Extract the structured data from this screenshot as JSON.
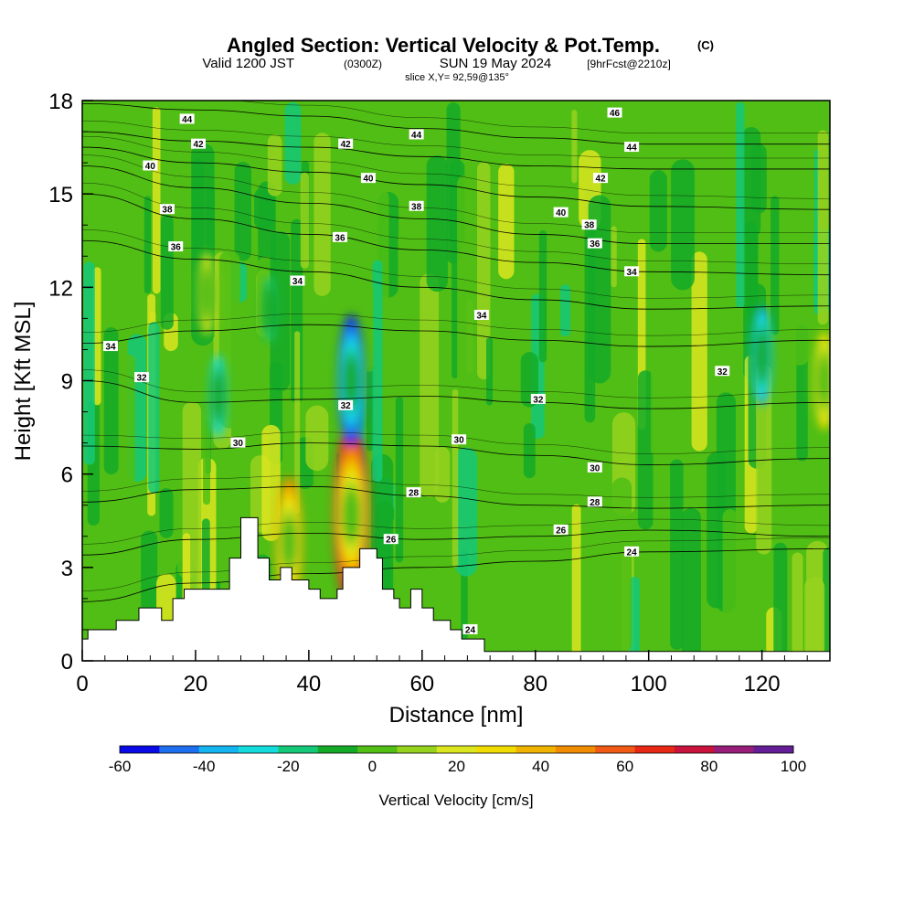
{
  "chart_data": {
    "type": "heatmap",
    "title": "Angled Section: Vertical Velocity & Pot.Temp.",
    "title_mark": "(C)",
    "subtitle": {
      "prefix": "Valid 1200 JST",
      "utc": "(0300Z)",
      "date": "SUN 19 May 2024",
      "fcst": "[9hrFcst@2210z]"
    },
    "slice": "slice X,Y= 92,59@135°",
    "xlabel": "Distance [nm]",
    "ylabel": "Height [Kft MSL]",
    "xlim": [
      0,
      132
    ],
    "ylim": [
      0,
      18
    ],
    "x_ticks": [
      "0",
      "20",
      "40",
      "60",
      "80",
      "100",
      "120"
    ],
    "y_ticks": [
      "0",
      "3",
      "6",
      "9",
      "12",
      "15",
      "18"
    ],
    "colorbar": {
      "label": "Vertical Velocity [cm/s]",
      "tick_labels": [
        "-60",
        "-40",
        "-20",
        "0",
        "20",
        "40",
        "60",
        "80",
        "100"
      ],
      "levels": [
        -60,
        -50,
        -40,
        -30,
        -20,
        -10,
        0,
        10,
        20,
        30,
        40,
        50,
        60,
        70,
        80,
        90,
        100
      ],
      "colors": [
        "#0a0ae6",
        "#1e6ef0",
        "#14b4f0",
        "#14dcdc",
        "#14c878",
        "#14aa28",
        "#50be14",
        "#96d21e",
        "#dce61e",
        "#f0dc00",
        "#f0b400",
        "#f08c00",
        "#f05a14",
        "#e62814",
        "#c8143c",
        "#961e78",
        "#641e96"
      ]
    },
    "terrain_kft": [
      [
        0,
        0.7
      ],
      [
        1,
        0.7
      ],
      [
        1,
        1.0
      ],
      [
        6,
        1.0
      ],
      [
        6,
        1.3
      ],
      [
        10,
        1.3
      ],
      [
        10,
        1.7
      ],
      [
        14,
        1.7
      ],
      [
        14,
        1.3
      ],
      [
        16,
        1.3
      ],
      [
        16,
        2.0
      ],
      [
        18,
        2.0
      ],
      [
        18,
        2.3
      ],
      [
        26,
        2.3
      ],
      [
        26,
        3.3
      ],
      [
        28,
        3.3
      ],
      [
        28,
        4.6
      ],
      [
        31,
        4.6
      ],
      [
        31,
        3.3
      ],
      [
        33,
        3.3
      ],
      [
        33,
        2.6
      ],
      [
        35,
        2.6
      ],
      [
        35,
        3.0
      ],
      [
        37,
        3.0
      ],
      [
        37,
        2.6
      ],
      [
        40,
        2.6
      ],
      [
        40,
        2.3
      ],
      [
        42,
        2.3
      ],
      [
        42,
        2.0
      ],
      [
        45,
        2.0
      ],
      [
        45,
        2.3
      ],
      [
        46,
        2.3
      ],
      [
        46,
        3.0
      ],
      [
        49,
        3.0
      ],
      [
        49,
        3.6
      ],
      [
        52,
        3.6
      ],
      [
        52,
        3.3
      ],
      [
        53,
        3.3
      ],
      [
        53,
        2.3
      ],
      [
        55,
        2.3
      ],
      [
        55,
        2.0
      ],
      [
        56,
        2.0
      ],
      [
        56,
        1.7
      ],
      [
        58,
        1.7
      ],
      [
        58,
        2.3
      ],
      [
        60,
        2.3
      ],
      [
        60,
        1.7
      ],
      [
        62,
        1.7
      ],
      [
        62,
        1.3
      ],
      [
        65,
        1.3
      ],
      [
        65,
        1.0
      ],
      [
        67,
        1.0
      ],
      [
        67,
        0.7
      ],
      [
        71,
        0.7
      ],
      [
        71,
        0.3
      ],
      [
        132,
        0.3
      ]
    ],
    "vertical_velocity_features": [
      {
        "x": 47.5,
        "z": 4.7,
        "w": 90
      },
      {
        "x": 36.5,
        "z": 3.8,
        "w": 60
      },
      {
        "x": 47.5,
        "z": 9.0,
        "w": -60
      },
      {
        "x": 120,
        "z": 9.8,
        "w": -40
      },
      {
        "x": 33,
        "z": 11.3,
        "w": -20
      },
      {
        "x": 22,
        "z": 11.8,
        "w": 30
      },
      {
        "x": 131,
        "z": 9.0,
        "w": 40
      },
      {
        "x": 24,
        "z": 8.5,
        "w": -30
      }
    ],
    "isentropes": [
      {
        "theta": "44",
        "points": [
          [
            0,
            17.9
          ],
          [
            20,
            17.7
          ],
          [
            40,
            17.5
          ],
          [
            60,
            17.1
          ],
          [
            80,
            16.8
          ],
          [
            100,
            16.6
          ],
          [
            132,
            16.6
          ]
        ]
      },
      {
        "theta": "44",
        "points": [
          [
            0,
            17.0
          ],
          [
            20,
            16.7
          ],
          [
            40,
            16.5
          ],
          [
            60,
            16.2
          ],
          [
            80,
            15.9
          ],
          [
            100,
            15.8
          ],
          [
            132,
            15.8
          ]
        ]
      },
      {
        "theta": "42",
        "points": [
          [
            0,
            16.5
          ],
          [
            20,
            16.0
          ],
          [
            40,
            15.7
          ],
          [
            60,
            15.3
          ],
          [
            80,
            14.9
          ],
          [
            100,
            14.6
          ],
          [
            132,
            14.5
          ]
        ]
      },
      {
        "theta": "40",
        "points": [
          [
            0,
            15.9
          ],
          [
            20,
            15.2
          ],
          [
            40,
            14.7
          ],
          [
            60,
            14.2
          ],
          [
            80,
            13.7
          ],
          [
            100,
            13.4
          ],
          [
            132,
            13.4
          ]
        ]
      },
      {
        "theta": "38",
        "points": [
          [
            0,
            15.0
          ],
          [
            20,
            14.2
          ],
          [
            40,
            13.7
          ],
          [
            60,
            13.2
          ],
          [
            80,
            12.8
          ],
          [
            100,
            12.5
          ],
          [
            132,
            12.4
          ]
        ]
      },
      {
        "theta": "36",
        "points": [
          [
            0,
            13.5
          ],
          [
            20,
            12.9
          ],
          [
            40,
            12.5
          ],
          [
            60,
            12.0
          ],
          [
            80,
            11.6
          ],
          [
            100,
            11.3
          ],
          [
            132,
            11.4
          ]
        ]
      },
      {
        "theta": "34",
        "points": [
          [
            0,
            10.2
          ],
          [
            20,
            10.6
          ],
          [
            40,
            10.8
          ],
          [
            60,
            10.6
          ],
          [
            80,
            10.3
          ],
          [
            100,
            10.1
          ],
          [
            132,
            10.3
          ]
        ]
      },
      {
        "theta": "32",
        "points": [
          [
            0,
            9.0
          ],
          [
            20,
            8.3
          ],
          [
            40,
            8.4
          ],
          [
            60,
            8.5
          ],
          [
            80,
            8.3
          ],
          [
            100,
            8.1
          ],
          [
            132,
            8.3
          ]
        ]
      },
      {
        "theta": "30",
        "points": [
          [
            0,
            6.9
          ],
          [
            20,
            6.8
          ],
          [
            40,
            7.0
          ],
          [
            60,
            6.9
          ],
          [
            80,
            6.6
          ],
          [
            100,
            6.3
          ],
          [
            132,
            6.5
          ]
        ]
      },
      {
        "theta": "28",
        "points": [
          [
            0,
            5.1
          ],
          [
            20,
            5.5
          ],
          [
            40,
            5.6
          ],
          [
            60,
            5.3
          ],
          [
            80,
            5.0
          ],
          [
            100,
            4.9
          ],
          [
            132,
            5.0
          ]
        ]
      },
      {
        "theta": "26",
        "points": [
          [
            0,
            3.4
          ],
          [
            20,
            3.9
          ],
          [
            40,
            4.1
          ],
          [
            60,
            3.9
          ],
          [
            80,
            4.0
          ],
          [
            100,
            4.2
          ],
          [
            132,
            4.0
          ]
        ]
      },
      {
        "theta": "24",
        "points": [
          [
            0,
            1.9
          ],
          [
            20,
            2.5
          ],
          [
            40,
            2.8
          ],
          [
            60,
            3.0
          ],
          [
            80,
            3.2
          ],
          [
            100,
            3.5
          ],
          [
            132,
            3.6
          ]
        ]
      }
    ],
    "contour_labels": [
      {
        "text": "44",
        "x": 18.5,
        "z": 17.4
      },
      {
        "text": "42",
        "x": 20.5,
        "z": 16.6
      },
      {
        "text": "40",
        "x": 12,
        "z": 15.9
      },
      {
        "text": "38",
        "x": 15,
        "z": 14.5
      },
      {
        "text": "36",
        "x": 16.5,
        "z": 13.3
      },
      {
        "text": "34",
        "x": 5,
        "z": 10.1
      },
      {
        "text": "32",
        "x": 10.5,
        "z": 9.1
      },
      {
        "text": "30",
        "x": 27.5,
        "z": 7.0
      },
      {
        "text": "42",
        "x": 46.5,
        "z": 16.6
      },
      {
        "text": "44",
        "x": 59,
        "z": 16.9
      },
      {
        "text": "40",
        "x": 50.5,
        "z": 15.5
      },
      {
        "text": "38",
        "x": 59,
        "z": 14.6
      },
      {
        "text": "36",
        "x": 45.5,
        "z": 13.6
      },
      {
        "text": "34",
        "x": 38,
        "z": 12.2
      },
      {
        "text": "34",
        "x": 70.5,
        "z": 11.1
      },
      {
        "text": "32",
        "x": 46.5,
        "z": 8.2
      },
      {
        "text": "30",
        "x": 66.5,
        "z": 7.1
      },
      {
        "text": "28",
        "x": 58.5,
        "z": 5.4
      },
      {
        "text": "26",
        "x": 54.5,
        "z": 3.9
      },
      {
        "text": "24",
        "x": 68.5,
        "z": 1.0
      },
      {
        "text": "46",
        "x": 94,
        "z": 17.6
      },
      {
        "text": "44",
        "x": 97,
        "z": 16.5
      },
      {
        "text": "42",
        "x": 91.5,
        "z": 15.5
      },
      {
        "text": "40",
        "x": 84.5,
        "z": 14.4
      },
      {
        "text": "38",
        "x": 89.5,
        "z": 14.0
      },
      {
        "text": "36",
        "x": 90.5,
        "z": 13.4
      },
      {
        "text": "34",
        "x": 97,
        "z": 12.5
      },
      {
        "text": "32",
        "x": 80.5,
        "z": 8.4
      },
      {
        "text": "30",
        "x": 90.5,
        "z": 6.2
      },
      {
        "text": "28",
        "x": 90.5,
        "z": 5.1
      },
      {
        "text": "26",
        "x": 84.5,
        "z": 4.2
      },
      {
        "text": "24",
        "x": 97,
        "z": 3.5
      },
      {
        "text": "32",
        "x": 113,
        "z": 9.3
      }
    ]
  }
}
